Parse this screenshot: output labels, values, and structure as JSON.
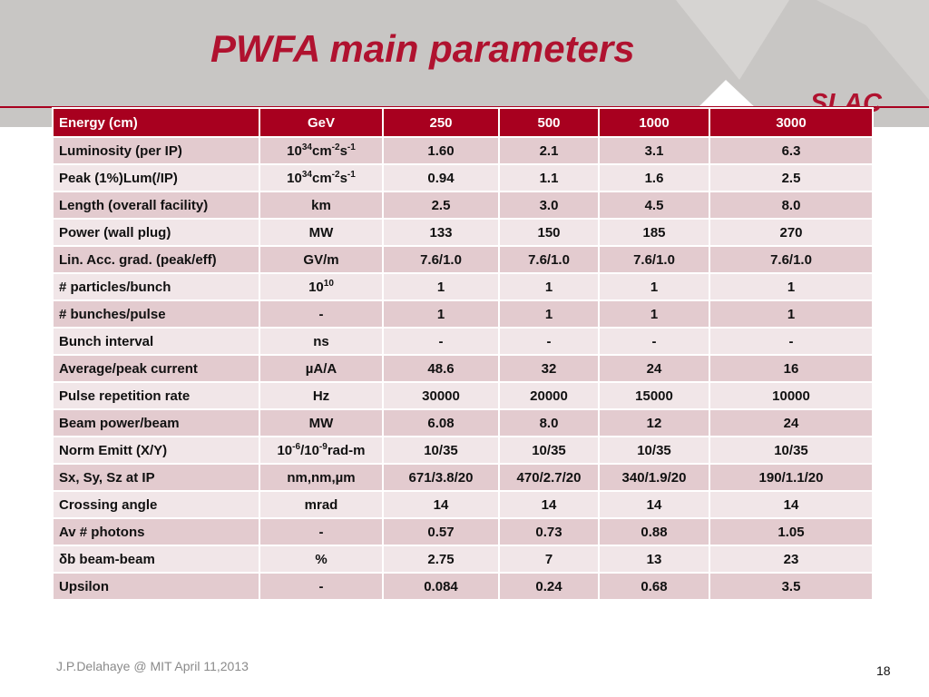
{
  "title": "PWFA main parameters",
  "logo": "SLAC",
  "colors": {
    "accent": "#b0122f",
    "header_row": "#a8001f",
    "row_dark": "#e3cbcf",
    "row_light": "#f1e6e8",
    "band": "#c8c6c4"
  },
  "table": {
    "headers": [
      "Energy (cm)",
      "GeV",
      "250",
      "500",
      "1000",
      "3000"
    ],
    "rows": [
      {
        "label": "Luminosity (per IP)",
        "unit": [
          {
            "t": "10"
          },
          {
            "t": "34",
            "sup": true
          },
          {
            "t": "cm"
          },
          {
            "t": "-2",
            "sup": true
          },
          {
            "t": "s"
          },
          {
            "t": "-1",
            "sup": true
          }
        ],
        "values": [
          "1.60",
          "2.1",
          "3.1",
          "6.3"
        ]
      },
      {
        "label": "Peak (1%)Lum(/IP)",
        "unit": [
          {
            "t": "10"
          },
          {
            "t": "34",
            "sup": true
          },
          {
            "t": "cm"
          },
          {
            "t": "-2",
            "sup": true
          },
          {
            "t": "s"
          },
          {
            "t": "-1",
            "sup": true
          }
        ],
        "values": [
          "0.94",
          "1.1",
          "1.6",
          "2.5"
        ]
      },
      {
        "label": "Length (overall facility)",
        "unit": [
          {
            "t": "km"
          }
        ],
        "values": [
          "2.5",
          "3.0",
          "4.5",
          "8.0"
        ]
      },
      {
        "label": "Power (wall plug)",
        "unit": [
          {
            "t": "MW"
          }
        ],
        "values": [
          "133",
          "150",
          "185",
          "270"
        ]
      },
      {
        "label": "Lin. Acc. grad. (peak/eff)",
        "unit": [
          {
            "t": "GV/m"
          }
        ],
        "values": [
          "7.6/1.0",
          "7.6/1.0",
          "7.6/1.0",
          "7.6/1.0"
        ]
      },
      {
        "label": "# particles/bunch",
        "unit": [
          {
            "t": "10"
          },
          {
            "t": "10",
            "sup": true
          }
        ],
        "values": [
          "1",
          "1",
          "1",
          "1"
        ]
      },
      {
        "label": "# bunches/pulse",
        "unit": [
          {
            "t": "-"
          }
        ],
        "values": [
          "1",
          "1",
          "1",
          "1"
        ]
      },
      {
        "label": "Bunch interval",
        "unit": [
          {
            "t": "ns"
          }
        ],
        "values": [
          "-",
          "-",
          "-",
          "-"
        ]
      },
      {
        "label": "Average/peak current",
        "unit": [
          {
            "t": "µA/A"
          }
        ],
        "values": [
          "48.6",
          "32",
          "24",
          "16"
        ]
      },
      {
        "label": "Pulse repetition rate",
        "unit": [
          {
            "t": "Hz"
          }
        ],
        "values": [
          "30000",
          "20000",
          "15000",
          "10000"
        ]
      },
      {
        "label": "Beam power/beam",
        "unit": [
          {
            "t": "MW"
          }
        ],
        "values": [
          "6.08",
          "8.0",
          "12",
          "24"
        ]
      },
      {
        "label": "Norm Emitt (X/Y)",
        "unit": [
          {
            "t": "10"
          },
          {
            "t": "-6",
            "sup": true
          },
          {
            "t": "/10"
          },
          {
            "t": "-9",
            "sup": true
          },
          {
            "t": "rad-m"
          }
        ],
        "values": [
          "10/35",
          "10/35",
          "10/35",
          "10/35"
        ]
      },
      {
        "label": "Sx, Sy, Sz at IP",
        "unit": [
          {
            "t": "nm,nm,µm"
          }
        ],
        "values": [
          "671/3.8/20",
          "470/2.7/20",
          "340/1.9/20",
          "190/1.1/20"
        ]
      },
      {
        "label": "Crossing angle",
        "unit": [
          {
            "t": "mrad"
          }
        ],
        "values": [
          "14",
          "14",
          "14",
          "14"
        ]
      },
      {
        "label": "Av # photons",
        "unit": [
          {
            "t": "-"
          }
        ],
        "values": [
          "0.57",
          "0.73",
          "0.88",
          "1.05"
        ]
      },
      {
        "label": "δb beam-beam",
        "unit": [
          {
            "t": "%"
          }
        ],
        "values": [
          "2.75",
          "7",
          "13",
          "23"
        ]
      },
      {
        "label": "Upsilon",
        "unit": [
          {
            "t": "-"
          }
        ],
        "values": [
          "0.084",
          "0.24",
          "0.68",
          "3.5"
        ]
      }
    ]
  },
  "footer": {
    "credit": "J.P.Delahaye @ MIT April 11,2013",
    "page_number": "18"
  }
}
